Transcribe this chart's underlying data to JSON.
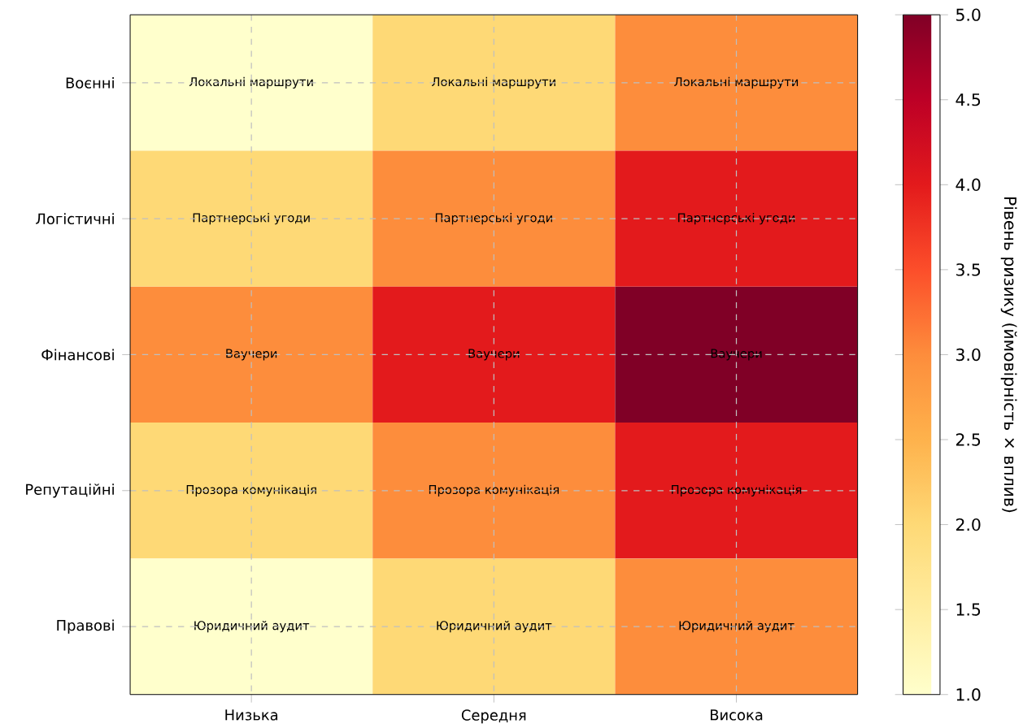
{
  "chart_data": {
    "type": "heatmap",
    "categories": [
      "Низька",
      "Середня",
      "Висока"
    ],
    "y_categories": [
      "Воєнні",
      "Логістичні",
      "Фінансові",
      "Репутаційні",
      "Правові"
    ],
    "cells": [
      [
        1,
        2,
        3
      ],
      [
        2,
        3,
        4
      ],
      [
        3,
        4,
        5
      ],
      [
        2,
        3,
        4
      ],
      [
        1,
        2,
        3
      ]
    ],
    "cell_labels": [
      [
        "Локальні маршрути",
        "Локальні маршрути",
        "Локальні маршрути"
      ],
      [
        "Партнерські угоди",
        "Партнерські угоди",
        "Партнерські угоди"
      ],
      [
        "Ваучери",
        "Ваучери",
        "Ваучери"
      ],
      [
        "Прозора комунікація",
        "Прозора комунікація",
        "Прозора комунікація"
      ],
      [
        "Юридичний аудит",
        "Юридичний аудит",
        "Юридичний аудит"
      ]
    ],
    "clim": [
      1,
      5
    ],
    "cticks": [
      {
        "value": 1,
        "label": "1.0"
      },
      {
        "value": 1.5,
        "label": "1.5"
      },
      {
        "value": 2,
        "label": "2.0"
      },
      {
        "value": 2.5,
        "label": "2.5"
      },
      {
        "value": 3,
        "label": "3.0"
      },
      {
        "value": 3.5,
        "label": "3.5"
      },
      {
        "value": 4,
        "label": "4.0"
      },
      {
        "value": 4.5,
        "label": "4.5"
      },
      {
        "value": 5,
        "label": "5.0"
      }
    ],
    "clabel": "Рівень ризику (ймовірність × вплив)",
    "grid": true
  }
}
